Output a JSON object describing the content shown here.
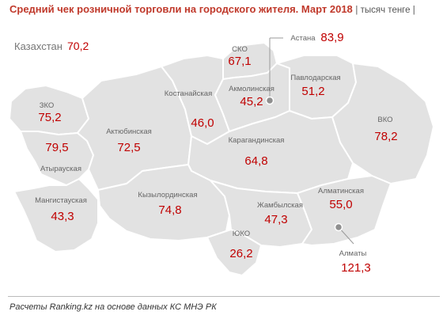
{
  "title": "Средний чек розничной торговли на городского жителя. Март 2018",
  "unit": "| тысяч тенге |",
  "kazakhstan": {
    "label": "Казахстан",
    "value": "70,2"
  },
  "colors": {
    "region_fill": "#e2e2e2",
    "border": "#ffffff",
    "value_text": "#c00000",
    "title_text": "#c0392b"
  },
  "regions": [
    {
      "name": "СКО",
      "value": "67,1"
    },
    {
      "name": "Костанайская",
      "value": "46,0"
    },
    {
      "name": "Акмолинская",
      "value": "45,2"
    },
    {
      "name": "Павлодарская",
      "value": "51,2"
    },
    {
      "name": "ЗКО",
      "value": "75,2"
    },
    {
      "name": "Актюбинская",
      "value": "72,5"
    },
    {
      "name": "Атырауская",
      "value": "79,5"
    },
    {
      "name": "ВКО",
      "value": "78,2"
    },
    {
      "name": "Карагандинская",
      "value": "64,8"
    },
    {
      "name": "Мангистауская",
      "value": "43,3"
    },
    {
      "name": "Кызылординская",
      "value": "74,8"
    },
    {
      "name": "Алматинская",
      "value": "55,0"
    },
    {
      "name": "Жамбылская",
      "value": "47,3"
    },
    {
      "name": "ЮКО",
      "value": "26,2"
    }
  ],
  "cities": [
    {
      "name": "Астана",
      "value": "83,9",
      "icon": "city-marker-icon"
    },
    {
      "name": "Алматы",
      "value": "121,3",
      "icon": "city-marker-icon"
    }
  ],
  "footer": "Расчеты Ranking.kz на основе данных КС МНЭ РК"
}
